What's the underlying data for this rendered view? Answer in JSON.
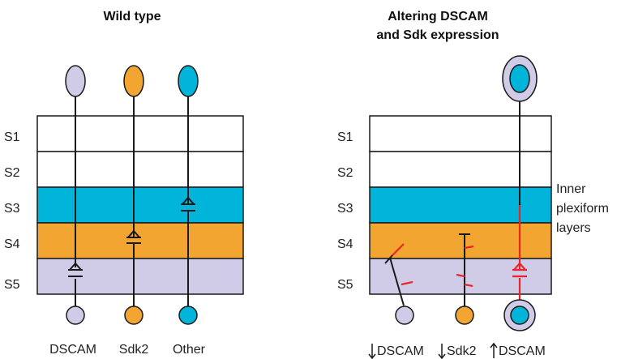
{
  "panels": {
    "wild_type": {
      "title": "Wild type",
      "cells": [
        "DSCAM",
        "Sdk2",
        "Other"
      ]
    },
    "altered": {
      "title_line1": "Altering DSCAM",
      "title_line2": "and Sdk expression",
      "cells": [
        "DSCAM",
        "Sdk2",
        "DSCAM"
      ],
      "arrows": [
        "down",
        "down",
        "up"
      ]
    }
  },
  "layers": [
    "S1",
    "S2",
    "S3",
    "S4",
    "S5"
  ],
  "side_note": [
    "Inner",
    "plexiform",
    "layers"
  ],
  "colors": {
    "dscam": "#d0cce8",
    "sdk2": "#f2a531",
    "other": "#00b5d9",
    "s3_band": "#00b5d9",
    "s4_band": "#f2a531",
    "s5_band": "#d0cce8",
    "altered_synapse": "#e8262a"
  }
}
